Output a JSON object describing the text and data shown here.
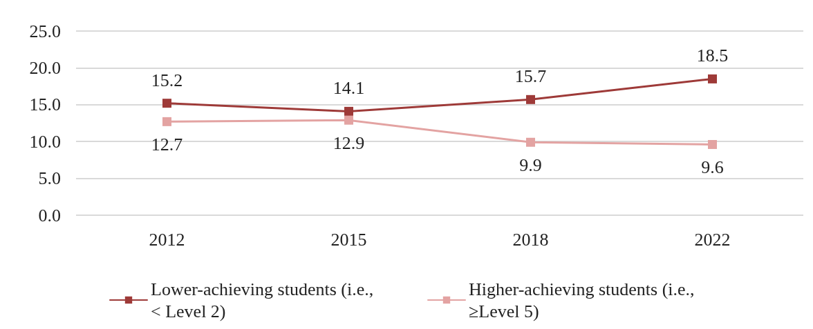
{
  "chart_data": {
    "type": "line",
    "categories": [
      "2012",
      "2015",
      "2018",
      "2022"
    ],
    "series": [
      {
        "name": "Lower-achieving students (i.e., < Level 2)",
        "color": "#9e3a38",
        "values": [
          15.2,
          14.1,
          15.7,
          18.5
        ]
      },
      {
        "name": "Higher-achieving students (i.e., ≥Level 5)",
        "color": "#e3a3a2",
        "values": [
          12.7,
          12.9,
          9.9,
          9.6
        ]
      }
    ],
    "ylim": [
      0,
      25
    ],
    "yticks": [
      {
        "value": 0,
        "label": "0.0"
      },
      {
        "value": 5,
        "label": "5.0"
      },
      {
        "value": 10,
        "label": "10.0"
      },
      {
        "value": 15,
        "label": "15.0"
      },
      {
        "value": 20,
        "label": "20.0"
      },
      {
        "value": 25,
        "label": "25.0"
      }
    ],
    "grid": "y",
    "legend": "bottom",
    "marker": "square",
    "line_style": "solid",
    "data_labels": true
  }
}
